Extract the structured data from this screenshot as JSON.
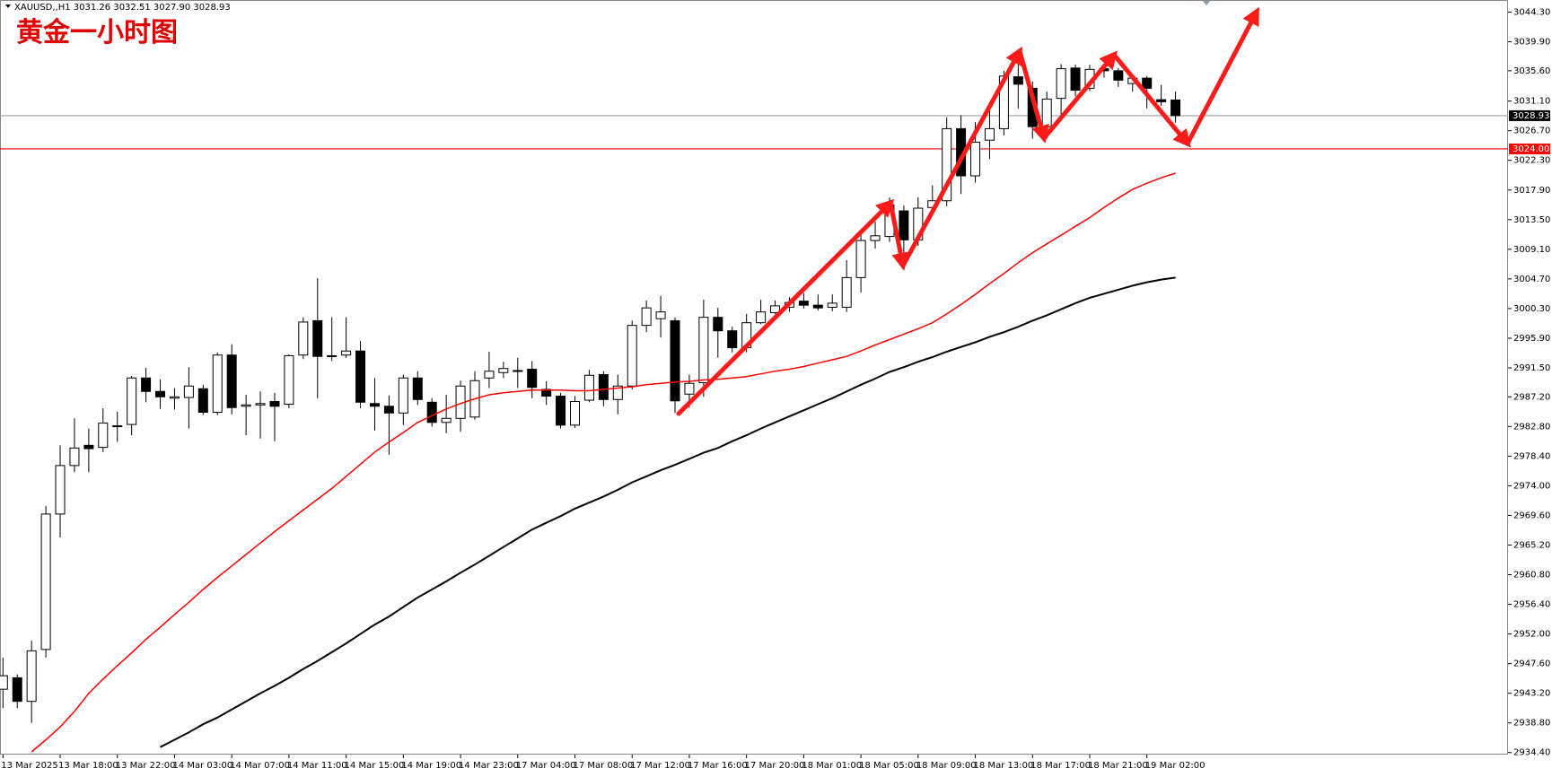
{
  "chart_data": {
    "type": "candlestick",
    "header": "XAUUSD,,H1  3031.26 3032.51 3027.90 3028.93",
    "title": "黄金一小时图",
    "categories": [
      "13 Mar 2025",
      null,
      null,
      null,
      "13 Mar 18:00",
      null,
      null,
      null,
      "13 Mar 22:00",
      null,
      null,
      null,
      "14 Mar 03:00",
      null,
      null,
      null,
      "14 Mar 07:00",
      null,
      null,
      null,
      "14 Mar 11:00",
      null,
      null,
      null,
      "14 Mar 15:00",
      null,
      null,
      null,
      "14 Mar 19:00",
      null,
      null,
      null,
      "14 Mar 23:00",
      null,
      null,
      null,
      "17 Mar 04:00",
      null,
      null,
      null,
      "17 Mar 08:00",
      null,
      null,
      null,
      "17 Mar 12:00",
      null,
      null,
      null,
      "17 Mar 16:00",
      null,
      null,
      null,
      "17 Mar 20:00",
      null,
      null,
      null,
      "18 Mar 01:00",
      null,
      null,
      null,
      "18 Mar 05:00",
      null,
      null,
      null,
      "18 Mar 09:00",
      null,
      null,
      null,
      "18 Mar 13:00",
      null,
      null,
      null,
      "18 Mar 17:00",
      null,
      null,
      null,
      "18 Mar 21:00",
      null,
      null,
      null,
      "19 Mar 02:00",
      null,
      null
    ],
    "open": [
      2943.8,
      2945.5,
      2942,
      2949.7,
      2969.8,
      2977,
      2980,
      2979.7,
      2982.8,
      2983.1,
      2990,
      2988,
      2987,
      2987.1,
      2988.4,
      2984.9,
      2993.4,
      2985.8,
      2986,
      2986.5,
      2986.1,
      2993.4,
      2998.5,
      2993.2,
      2993.4,
      2994,
      2986.2,
      2985.8,
      2984.8,
      2990,
      2986.4,
      2983.4,
      2984,
      2984.2,
      2990,
      2990.8,
      2991.1,
      2991.3,
      2988.3,
      2987.3,
      2983,
      2986.7,
      2990.5,
      2986.8,
      2988.8,
      2997.8,
      2998.8,
      2998.5,
      2987.6,
      2989.3,
      2999,
      2997,
      2994.5,
      2998.2,
      2999.7,
      3000.5,
      3001.4,
      3000.8,
      3000.5,
      3000.5,
      3004.9,
      3010.4,
      3011,
      3014.8,
      3010.5,
      3015.3,
      3016.3,
      3027,
      3020,
      3025.3,
      3027,
      3034.7,
      3033,
      3027.3,
      3031.5,
      3036,
      3033,
      3035.9,
      3035.6,
      3033.7,
      3034.5,
      3031.3,
      3031.26
    ],
    "high": [
      2948.5,
      2946,
      2951,
      2971,
      2980,
      2984,
      2982.5,
      2985.5,
      2985,
      2990.3,
      2991.5,
      2989.8,
      2988.5,
      2991.6,
      2989,
      2993.8,
      2995,
      2987.5,
      2988,
      2987.8,
      2993.5,
      2999,
      3004.8,
      2999,
      2999,
      2995.5,
      2990,
      2987.4,
      2990.5,
      2991,
      2987,
      2987.5,
      2989.6,
      2991,
      2993.9,
      2992.4,
      2993,
      2992.5,
      2989.5,
      2987.8,
      2987.3,
      2991.2,
      2991,
      2990.5,
      2998.5,
      3001.5,
      3002.2,
      2999,
      2990.5,
      3001.6,
      3000.4,
      2997.6,
      2999.5,
      3001.6,
      3001.5,
      3002,
      3002.6,
      3002.4,
      3002.4,
      3007.5,
      3011.7,
      3013.2,
      3016.8,
      3015.6,
      3016.8,
      3018.6,
      3028.7,
      3029,
      3028,
      3030.8,
      3035.6,
      3037.6,
      3034,
      3032.5,
      3036.6,
      3036.5,
      3036.5,
      3036.2,
      3036,
      3034.8,
      3034.8,
      3033.5,
      3032.51
    ],
    "low": [
      2941,
      2941,
      2938.8,
      2948.5,
      2966.3,
      2976,
      2976,
      2979,
      2980.5,
      2981.5,
      2986.4,
      2985.4,
      2985.3,
      2982.5,
      2984.5,
      2984.5,
      2984.6,
      2981.5,
      2981,
      2980.6,
      2985.5,
      2992.8,
      2987,
      2992.5,
      2993,
      2985.5,
      2982.2,
      2978.6,
      2983,
      2986,
      2982.8,
      2981.8,
      2982,
      2983.8,
      2988.5,
      2990,
      2988.5,
      2987,
      2986,
      2982.5,
      2982.6,
      2986.4,
      2985.8,
      2984.6,
      2988.3,
      2996.8,
      2996,
      2984.8,
      2985.6,
      2987.2,
      2993,
      2993.8,
      2993.8,
      2998,
      2999.5,
      2999.8,
      3000.3,
      3000,
      2999.9,
      2999.8,
      3002.7,
      3009.2,
      3010.2,
      3007.7,
      3009.6,
      3014.7,
      3015.5,
      3017.3,
      3019,
      3022.5,
      3026,
      3030,
      3025.5,
      3025.5,
      3029,
      3031.8,
      3032.6,
      3034.6,
      3033.2,
      3032.5,
      3030,
      3030.4,
      3027.9
    ],
    "close": [
      2945.8,
      2942,
      2949.5,
      2969.8,
      2977,
      2979.6,
      2979.5,
      2983.3,
      2982.9,
      2990,
      2988,
      2987.2,
      2987.2,
      2988.8,
      2984.9,
      2993.4,
      2985.6,
      2986,
      2986.2,
      2985.8,
      2993.3,
      2998.3,
      2993.2,
      2993.3,
      2994,
      2986.4,
      2985.8,
      2984.8,
      2990,
      2986.8,
      2983.4,
      2984,
      2988.8,
      2989.6,
      2991,
      2991.4,
      2991,
      2988.6,
      2987.3,
      2983,
      2986.5,
      2990.4,
      2986.8,
      2988.8,
      2997.8,
      3000.4,
      2999.8,
      2986.6,
      2989.2,
      2999,
      2997,
      2994.5,
      2998.2,
      2999.8,
      3000.7,
      3001.2,
      3000.8,
      3000.4,
      3001.1,
      3004.9,
      3010.4,
      3011.1,
      3015.7,
      3010.5,
      3015.2,
      3016.3,
      3027,
      3020,
      3025,
      3027,
      3034.8,
      3033.6,
      3027.3,
      3031.4,
      3035.9,
      3032.7,
      3035.8,
      3035.6,
      3034.2,
      3034.5,
      3033,
      3031,
      3028.93
    ],
    "up_color": "#ffffff",
    "down_color": "#000000",
    "wick_color": "#000000",
    "lines": [
      {
        "color": "#ff0000",
        "values": [
          null,
          null,
          2934.5,
          2936.3,
          2938.2,
          2940.5,
          2943.2,
          2945.3,
          2947.3,
          2949.2,
          2951.2,
          2953,
          2954.9,
          2956.7,
          2958.6,
          2960.4,
          2962.1,
          2963.8,
          2965.5,
          2967.2,
          2968.8,
          2970.4,
          2972,
          2973.6,
          2975.4,
          2977.2,
          2979,
          2980.5,
          2981.9,
          2983.4,
          2984.4,
          2985.4,
          2986.2,
          2986.9,
          2987.5,
          2987.8,
          2988,
          2988.2,
          2988.2,
          2988.2,
          2988.1,
          2988.1,
          2988.3,
          2988.5,
          2988.7,
          2989,
          2989.2,
          2989.4,
          2989.5,
          2989.7,
          2989.8,
          2990,
          2990.2,
          2990.6,
          2991,
          2991.3,
          2991.7,
          2992.2,
          2992.7,
          2993.2,
          2994,
          2994.9,
          2995.7,
          2996.5,
          2997.3,
          2998.2,
          2999.5,
          3000.9,
          3002.4,
          3004,
          3005.5,
          3007.1,
          3008.6,
          3009.9,
          3011.2,
          3012.5,
          3013.8,
          3015.3,
          3016.7,
          3018,
          3018.9,
          3019.7,
          3020.4
        ]
      },
      {
        "color": "#000000",
        "values": [
          null,
          null,
          null,
          null,
          null,
          null,
          null,
          null,
          null,
          null,
          null,
          2935.2,
          2936.3,
          2937.4,
          2938.6,
          2939.6,
          2940.8,
          2942,
          2943.2,
          2944.3,
          2945.5,
          2946.8,
          2948,
          2949.3,
          2950.6,
          2952,
          2953.4,
          2954.6,
          2956,
          2957.4,
          2958.6,
          2959.8,
          2961.1,
          2962.3,
          2963.6,
          2964.9,
          2966.2,
          2967.5,
          2968.5,
          2969.5,
          2970.6,
          2971.5,
          2972.4,
          2973.4,
          2974.5,
          2975.4,
          2976.3,
          2977.1,
          2978,
          2978.9,
          2979.6,
          2980.6,
          2981.5,
          2982.5,
          2983.4,
          2984.3,
          2985.2,
          2986.1,
          2987,
          2988,
          2989,
          2989.9,
          2990.9,
          2991.6,
          2992.4,
          2993.1,
          2993.9,
          2994.6,
          2995.3,
          2996.1,
          2996.8,
          2997.6,
          2998.5,
          2999.3,
          3000.2,
          3001.1,
          3001.9,
          3002.5,
          3003.1,
          3003.7,
          3004.2,
          3004.6,
          3004.9
        ]
      }
    ],
    "hlines": [
      {
        "value": 3028.93,
        "label": "3028.93",
        "color": "#a0a0a0",
        "box_color": "#000000"
      },
      {
        "value": 3024,
        "label": "3024.00",
        "color": "#ff0000",
        "box_color": "#ff0000"
      }
    ],
    "ylim": [
      2934.1,
      3046.1
    ],
    "yticks": [
      {
        "value": 3044.3,
        "label": "3044.30"
      },
      {
        "value": 3039.9,
        "label": "3039.90"
      },
      {
        "value": 3035.6,
        "label": "3035.60"
      },
      {
        "value": 3031.1,
        "label": "3031.10"
      },
      {
        "value": 3026.7,
        "label": "3026.70"
      },
      {
        "value": 3022.3,
        "label": "3022.30"
      },
      {
        "value": 3017.9,
        "label": "3017.90"
      },
      {
        "value": 3013.5,
        "label": "3013.50"
      },
      {
        "value": 3009.1,
        "label": "3009.10"
      },
      {
        "value": 3004.7,
        "label": "3004.70"
      },
      {
        "value": 3000.3,
        "label": "3000.30"
      },
      {
        "value": 2995.9,
        "label": "2995.90"
      },
      {
        "value": 2991.5,
        "label": "2991.50"
      },
      {
        "value": 2987.2,
        "label": "2987.20"
      },
      {
        "value": 2982.8,
        "label": "2982.80"
      },
      {
        "value": 2978.4,
        "label": "2978.40"
      },
      {
        "value": 2974,
        "label": "2974.00"
      },
      {
        "value": 2969.6,
        "label": "2969.60"
      },
      {
        "value": 2965.2,
        "label": "2965.20"
      },
      {
        "value": 2960.8,
        "label": "2960.80"
      },
      {
        "value": 2956.4,
        "label": "2956.40"
      },
      {
        "value": 2952,
        "label": "2952.00"
      },
      {
        "value": 2947.6,
        "label": "2947.60"
      },
      {
        "value": 2943.2,
        "label": "2943.20"
      },
      {
        "value": 2938.8,
        "label": "2938.80"
      },
      {
        "value": 2934.4,
        "label": "2934.40"
      }
    ],
    "grid": false
  }
}
